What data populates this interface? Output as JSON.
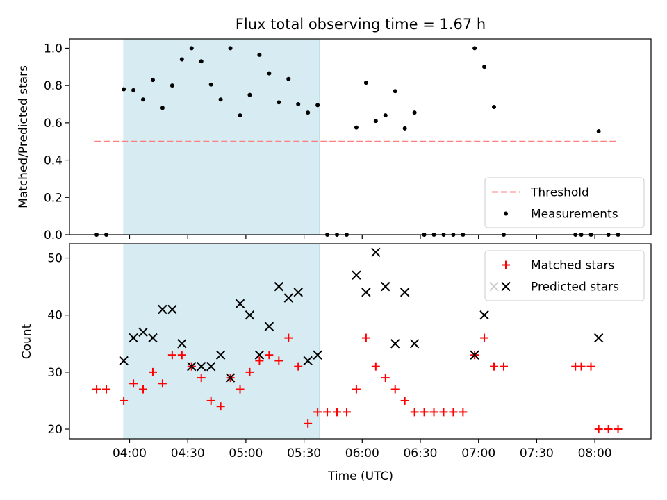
{
  "figure": {
    "title": "Flux total observing time = 1.67 h",
    "xlabel": "Time (UTC)"
  },
  "chart_data": [
    {
      "type": "scatter",
      "panel": "top",
      "ylabel": "Matched/Predicted stars",
      "xlim": [
        "03:29",
        "08:29"
      ],
      "ylim": [
        0,
        1.05
      ],
      "x_ticks": [
        "04:00",
        "04:30",
        "05:00",
        "05:30",
        "06:00",
        "06:30",
        "07:00",
        "07:30",
        "08:00"
      ],
      "y_ticks": [
        "0.0",
        "0.2",
        "0.4",
        "0.6",
        "0.8",
        "1.0"
      ],
      "shaded_span": {
        "from": "03:57",
        "to": "05:38",
        "color": "#add8e6"
      },
      "legend_position": "lower-right",
      "threshold": {
        "name": "Threshold",
        "value": 0.5,
        "from": "03:42",
        "to": "08:12",
        "color": "#ff7f7f",
        "style": "dashed"
      },
      "series": [
        {
          "name": "Measurements",
          "color": "#000000",
          "marker": "dot",
          "points": [
            [
              "03:43",
              0
            ],
            [
              "03:48",
              0
            ],
            [
              "03:57",
              0.78
            ],
            [
              "04:02",
              0.775
            ],
            [
              "04:07",
              0.725
            ],
            [
              "04:12",
              0.83
            ],
            [
              "04:17",
              0.68
            ],
            [
              "04:22",
              0.8
            ],
            [
              "04:27",
              0.94
            ],
            [
              "04:32",
              1.0
            ],
            [
              "04:37",
              0.93
            ],
            [
              "04:42",
              0.805
            ],
            [
              "04:47",
              0.725
            ],
            [
              "04:52",
              1.0
            ],
            [
              "04:57",
              0.64
            ],
            [
              "05:02",
              0.75
            ],
            [
              "05:07",
              0.965
            ],
            [
              "05:12",
              0.865
            ],
            [
              "05:17",
              0.71
            ],
            [
              "05:22",
              0.835
            ],
            [
              "05:27",
              0.7
            ],
            [
              "05:32",
              0.655
            ],
            [
              "05:37",
              0.695
            ],
            [
              "05:42",
              0
            ],
            [
              "05:47",
              0
            ],
            [
              "05:52",
              0
            ],
            [
              "05:57",
              0.575
            ],
            [
              "06:02",
              0.815
            ],
            [
              "06:07",
              0.61
            ],
            [
              "06:12",
              0.64
            ],
            [
              "06:17",
              0.77
            ],
            [
              "06:22",
              0.57
            ],
            [
              "06:27",
              0.655
            ],
            [
              "06:32",
              0
            ],
            [
              "06:37",
              0
            ],
            [
              "06:42",
              0
            ],
            [
              "06:47",
              0
            ],
            [
              "06:52",
              0
            ],
            [
              "06:58",
              1.0
            ],
            [
              "07:03",
              0.9
            ],
            [
              "07:08",
              0.685
            ],
            [
              "07:13",
              0
            ],
            [
              "07:50",
              0
            ],
            [
              "07:53",
              0
            ],
            [
              "07:58",
              0
            ],
            [
              "08:02",
              0.555
            ],
            [
              "08:07",
              0
            ],
            [
              "08:12",
              0
            ]
          ]
        }
      ]
    },
    {
      "type": "scatter",
      "panel": "bottom",
      "ylabel": "Count",
      "xlabel": "Time (UTC)",
      "xlim": [
        "03:29",
        "08:29"
      ],
      "ylim": [
        18.3,
        52.5
      ],
      "x_ticks": [
        "04:00",
        "04:30",
        "05:00",
        "05:30",
        "06:00",
        "06:30",
        "07:00",
        "07:30",
        "08:00"
      ],
      "y_ticks": [
        "20",
        "30",
        "40",
        "50"
      ],
      "shaded_span": {
        "from": "03:57",
        "to": "05:38",
        "color": "#add8e6"
      },
      "legend_position": "upper-right",
      "series": [
        {
          "name": "Matched stars",
          "color": "#ff0000",
          "marker": "plus",
          "points": [
            [
              "03:43",
              27
            ],
            [
              "03:48",
              27
            ],
            [
              "03:57",
              25
            ],
            [
              "04:02",
              28
            ],
            [
              "04:07",
              27
            ],
            [
              "04:12",
              30
            ],
            [
              "04:17",
              28
            ],
            [
              "04:22",
              33
            ],
            [
              "04:27",
              33
            ],
            [
              "04:32",
              31
            ],
            [
              "04:37",
              29
            ],
            [
              "04:42",
              25
            ],
            [
              "04:47",
              24
            ],
            [
              "04:52",
              29
            ],
            [
              "04:57",
              27
            ],
            [
              "05:02",
              30
            ],
            [
              "05:07",
              32
            ],
            [
              "05:12",
              33
            ],
            [
              "05:17",
              32
            ],
            [
              "05:22",
              36
            ],
            [
              "05:27",
              31
            ],
            [
              "05:32",
              21
            ],
            [
              "05:37",
              23
            ],
            [
              "05:42",
              23
            ],
            [
              "05:47",
              23
            ],
            [
              "05:52",
              23
            ],
            [
              "05:57",
              27
            ],
            [
              "06:02",
              36
            ],
            [
              "06:07",
              31
            ],
            [
              "06:12",
              29
            ],
            [
              "06:17",
              27
            ],
            [
              "06:22",
              25
            ],
            [
              "06:27",
              23
            ],
            [
              "06:32",
              23
            ],
            [
              "06:37",
              23
            ],
            [
              "06:42",
              23
            ],
            [
              "06:47",
              23
            ],
            [
              "06:52",
              23
            ],
            [
              "06:58",
              33
            ],
            [
              "07:03",
              36
            ],
            [
              "07:08",
              31
            ],
            [
              "07:13",
              31
            ],
            [
              "07:50",
              31
            ],
            [
              "07:53",
              31
            ],
            [
              "07:58",
              31
            ],
            [
              "08:02",
              20
            ],
            [
              "08:07",
              20
            ],
            [
              "08:12",
              20
            ]
          ]
        },
        {
          "name": "Predicted stars",
          "color": "#000000",
          "marker": "x",
          "points": [
            [
              "03:57",
              32
            ],
            [
              "04:02",
              36
            ],
            [
              "04:07",
              37
            ],
            [
              "04:12",
              36
            ],
            [
              "04:17",
              41
            ],
            [
              "04:22",
              41
            ],
            [
              "04:27",
              35
            ],
            [
              "04:32",
              31
            ],
            [
              "04:37",
              31
            ],
            [
              "04:42",
              31
            ],
            [
              "04:47",
              33
            ],
            [
              "04:52",
              29
            ],
            [
              "04:57",
              42
            ],
            [
              "05:02",
              40
            ],
            [
              "05:07",
              33
            ],
            [
              "05:12",
              38
            ],
            [
              "05:17",
              45
            ],
            [
              "05:22",
              43
            ],
            [
              "05:27",
              44
            ],
            [
              "05:32",
              32
            ],
            [
              "05:37",
              33
            ],
            [
              "05:57",
              47
            ],
            [
              "06:02",
              44
            ],
            [
              "06:07",
              51
            ],
            [
              "06:12",
              45
            ],
            [
              "06:17",
              35
            ],
            [
              "06:22",
              44
            ],
            [
              "06:27",
              35
            ],
            [
              "06:58",
              33
            ],
            [
              "07:03",
              40
            ],
            [
              "07:08",
              45
            ],
            [
              "08:02",
              36
            ]
          ]
        }
      ]
    }
  ]
}
